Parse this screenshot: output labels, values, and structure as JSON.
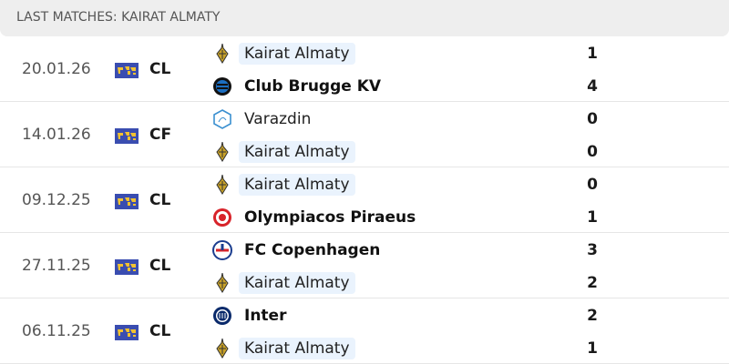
{
  "header": {
    "title": "LAST MATCHES: KAIRAT ALMATY"
  },
  "colors": {
    "highlight": "#eaf3fd",
    "competition_flag": "#3a4db0"
  },
  "matches": [
    {
      "date": "20.01.26",
      "competition": "CL",
      "home": {
        "name": "Kairat Almaty",
        "icon": "kairat-crest-icon",
        "score": "1",
        "highlight": true,
        "winner": false
      },
      "away": {
        "name": "Club Brugge KV",
        "icon": "club-brugge-crest-icon",
        "score": "4",
        "highlight": false,
        "winner": true
      }
    },
    {
      "date": "14.01.26",
      "competition": "CF",
      "home": {
        "name": "Varazdin",
        "icon": "varazdin-crest-icon",
        "score": "0",
        "highlight": false,
        "winner": false
      },
      "away": {
        "name": "Kairat Almaty",
        "icon": "kairat-crest-icon",
        "score": "0",
        "highlight": true,
        "winner": false
      }
    },
    {
      "date": "09.12.25",
      "competition": "CL",
      "home": {
        "name": "Kairat Almaty",
        "icon": "kairat-crest-icon",
        "score": "0",
        "highlight": true,
        "winner": false
      },
      "away": {
        "name": "Olympiacos Piraeus",
        "icon": "olympiacos-crest-icon",
        "score": "1",
        "highlight": false,
        "winner": true
      }
    },
    {
      "date": "27.11.25",
      "competition": "CL",
      "home": {
        "name": "FC Copenhagen",
        "icon": "fc-copenhagen-crest-icon",
        "score": "3",
        "highlight": false,
        "winner": true
      },
      "away": {
        "name": "Kairat Almaty",
        "icon": "kairat-crest-icon",
        "score": "2",
        "highlight": true,
        "winner": false
      }
    },
    {
      "date": "06.11.25",
      "competition": "CL",
      "home": {
        "name": "Inter",
        "icon": "inter-crest-icon",
        "score": "2",
        "highlight": false,
        "winner": true
      },
      "away": {
        "name": "Kairat Almaty",
        "icon": "kairat-crest-icon",
        "score": "1",
        "highlight": true,
        "winner": false
      }
    }
  ]
}
